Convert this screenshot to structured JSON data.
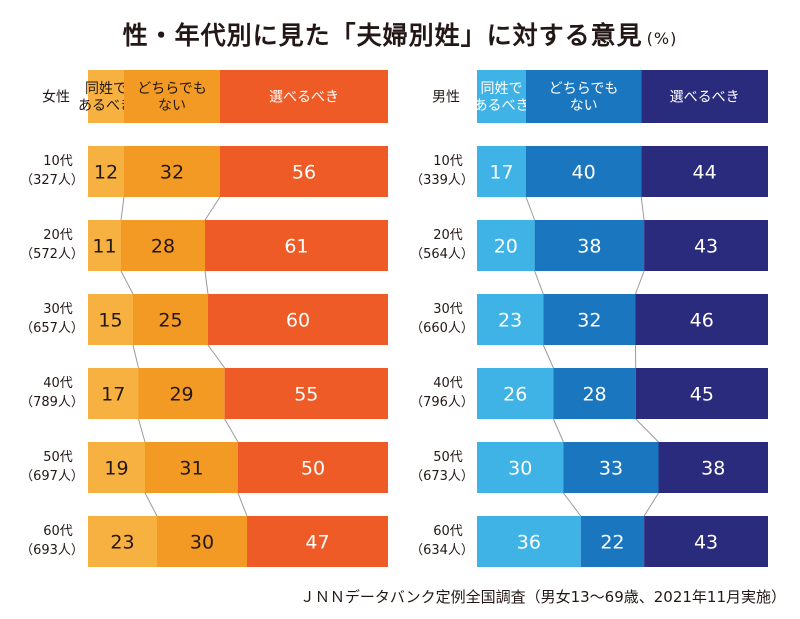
{
  "title": "性・年代別に見た「夫婦別姓」に対する意見",
  "unit": "(%)",
  "source": "ＪＮＮデータバンク定例全国調査（男女13〜69歳、2021年11月実施）",
  "colors": {
    "female": [
      "#f7b140",
      "#f29a24",
      "#ef5b27"
    ],
    "male": [
      "#3fb3e6",
      "#1a76be",
      "#2b2b7e"
    ],
    "connector": "#9a9a9a"
  },
  "chart_data": [
    {
      "type": "bar",
      "stacked": true,
      "orientation": "horizontal",
      "group_label": "女性",
      "categories": [
        {
          "age": "10代",
          "n": "（327人）"
        },
        {
          "age": "20代",
          "n": "（572人）"
        },
        {
          "age": "30代",
          "n": "（657人）"
        },
        {
          "age": "40代",
          "n": "（789人）"
        },
        {
          "age": "50代",
          "n": "（697人）"
        },
        {
          "age": "60代",
          "n": "（693人）"
        }
      ],
      "series": [
        {
          "name": "同姓であるべき",
          "label_lines": [
            "同姓で",
            "あるべき"
          ],
          "values": [
            12,
            11,
            15,
            17,
            19,
            23
          ]
        },
        {
          "name": "どちらでもない",
          "label_lines": [
            "どちらでも",
            "ない"
          ],
          "values": [
            32,
            28,
            25,
            29,
            31,
            30
          ]
        },
        {
          "name": "選べるべき",
          "label_lines": [
            "選べるべき"
          ],
          "values": [
            56,
            61,
            60,
            55,
            50,
            47
          ]
        }
      ]
    },
    {
      "type": "bar",
      "stacked": true,
      "orientation": "horizontal",
      "group_label": "男性",
      "categories": [
        {
          "age": "10代",
          "n": "（339人）"
        },
        {
          "age": "20代",
          "n": "（564人）"
        },
        {
          "age": "30代",
          "n": "（660人）"
        },
        {
          "age": "40代",
          "n": "（796人）"
        },
        {
          "age": "50代",
          "n": "（673人）"
        },
        {
          "age": "60代",
          "n": "（634人）"
        }
      ],
      "series": [
        {
          "name": "同姓であるべき",
          "label_lines": [
            "同姓で",
            "あるべき"
          ],
          "values": [
            17,
            20,
            23,
            26,
            30,
            36
          ]
        },
        {
          "name": "どちらでもない",
          "label_lines": [
            "どちらでも",
            "ない"
          ],
          "values": [
            40,
            38,
            32,
            28,
            33,
            22
          ]
        },
        {
          "name": "選べるべき",
          "label_lines": [
            "選べるべき"
          ],
          "values": [
            44,
            43,
            46,
            45,
            38,
            43
          ]
        }
      ]
    }
  ]
}
